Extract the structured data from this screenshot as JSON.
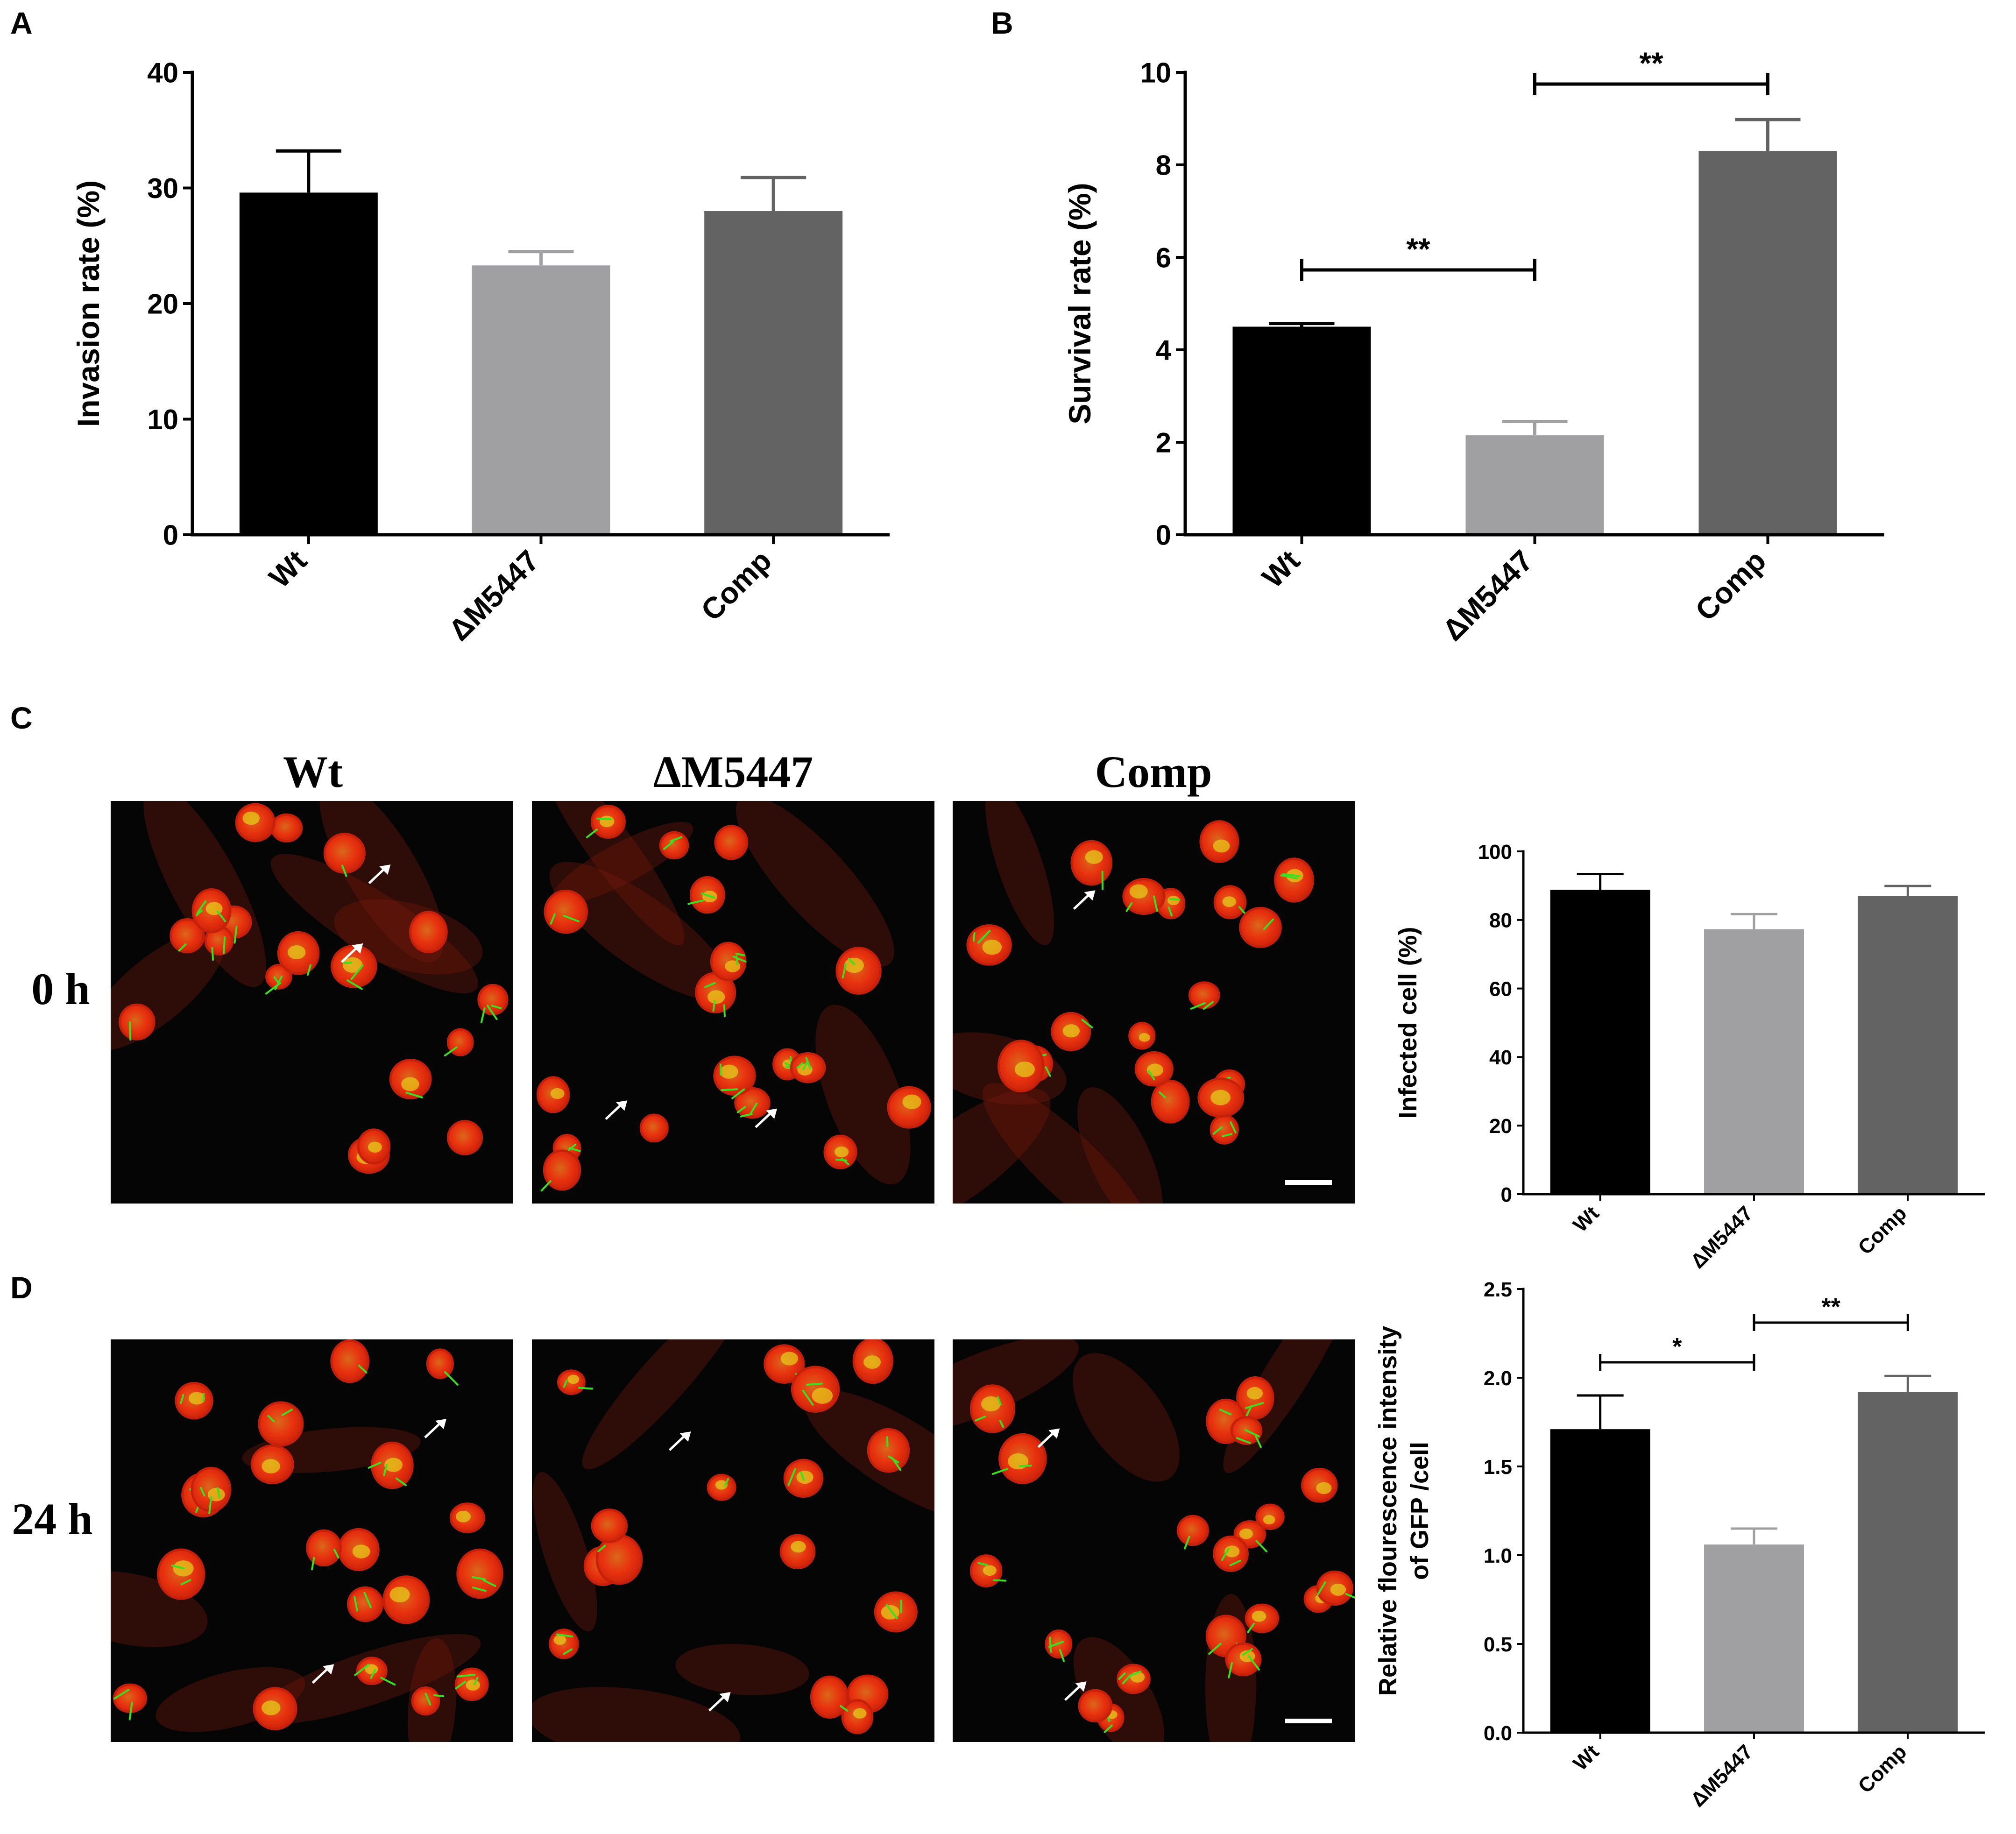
{
  "panels": {
    "A": "A",
    "B": "B",
    "C": "C",
    "D": "D"
  },
  "colors": {
    "wt": "#000000",
    "mutant": "#a0a0a3",
    "comp": "#636363",
    "micro_bg": "#050505",
    "cell_red": "#e8320f",
    "cell_edge": "#c7200a",
    "bacteria_green": "#39e020",
    "overlap_yellow": "#e6c81a"
  },
  "microscopy": {
    "column_labels": [
      "Wt",
      "ΔM5447",
      "Comp"
    ],
    "row_labels": [
      "0 h",
      "24 h"
    ],
    "marker_icon": "white-arrow-icon",
    "scale_bar_icon": "white-scale-bar"
  },
  "chart_data": [
    {
      "id": "A",
      "type": "bar",
      "categories": [
        "Wt",
        "ΔM5447",
        "Comp"
      ],
      "values": [
        29.6,
        23.3,
        28.0
      ],
      "errors": [
        3.6,
        1.2,
        2.9
      ],
      "ylabel": "Invasion rate (%)",
      "ylim": [
        0,
        40
      ],
      "yticks": [
        "0",
        "10",
        "20",
        "30",
        "40"
      ],
      "significance": []
    },
    {
      "id": "B",
      "type": "bar",
      "categories": [
        "Wt",
        "ΔM5447",
        "Comp"
      ],
      "values": [
        4.5,
        2.15,
        8.3
      ],
      "errors": [
        0.07,
        0.3,
        0.68
      ],
      "ylabel": "Survival rate (%)",
      "ylim": [
        0,
        10
      ],
      "yticks": [
        "0",
        "2",
        "4",
        "6",
        "8",
        "10"
      ],
      "significance": [
        {
          "from": 0,
          "to": 1,
          "label": "**"
        },
        {
          "from": 1,
          "to": 2,
          "label": "**"
        }
      ]
    },
    {
      "id": "C",
      "type": "bar",
      "categories": [
        "Wt",
        "ΔM5447",
        "Comp"
      ],
      "values": [
        88.8,
        77.3,
        87.0
      ],
      "errors": [
        4.6,
        4.4,
        2.9
      ],
      "ylabel": "Infected cell (%)",
      "ylim": [
        0,
        100
      ],
      "yticks": [
        "0",
        "20",
        "40",
        "60",
        "80",
        "100"
      ],
      "significance": []
    },
    {
      "id": "D",
      "type": "bar",
      "categories": [
        "Wt",
        "ΔM5447",
        "Comp"
      ],
      "values": [
        1.71,
        1.06,
        1.92
      ],
      "errors": [
        0.19,
        0.09,
        0.09
      ],
      "ylabel": [
        "Relative flourescence intensity",
        "of GFP /cell"
      ],
      "ylim": [
        0,
        2.5
      ],
      "yticks": [
        "0.0",
        "0.5",
        "1.0",
        "1.5",
        "2.0",
        "2.5"
      ],
      "significance": [
        {
          "from": 0,
          "to": 1,
          "label": "*"
        },
        {
          "from": 1,
          "to": 2,
          "label": "**"
        }
      ]
    }
  ]
}
